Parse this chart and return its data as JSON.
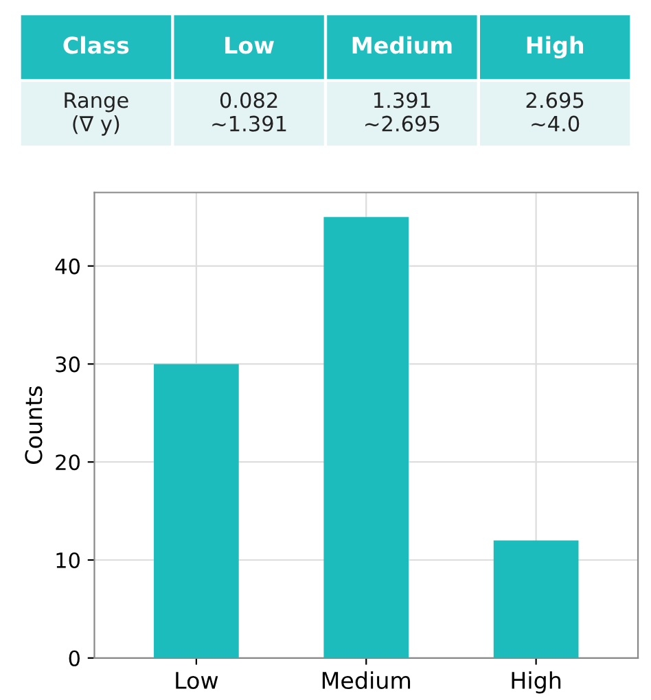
{
  "chart_data": [
    {
      "type": "other",
      "annotations": [
        "Class",
        "Low",
        "Medium",
        "High",
        "Range\n(∇ y)",
        "0.082\n~1.391",
        "1.391\n~2.695",
        "2.695\n~4.0"
      ]
    },
    {
      "type": "bar",
      "categories": [
        "Low",
        "Medium",
        "High"
      ],
      "values": [
        30,
        45,
        12
      ],
      "color": "#1cbcbc",
      "ylabel": "Counts",
      "ylim": [
        0,
        47.5
      ],
      "yticks": [
        0,
        10,
        20,
        30,
        40
      ],
      "grid": true
    }
  ]
}
